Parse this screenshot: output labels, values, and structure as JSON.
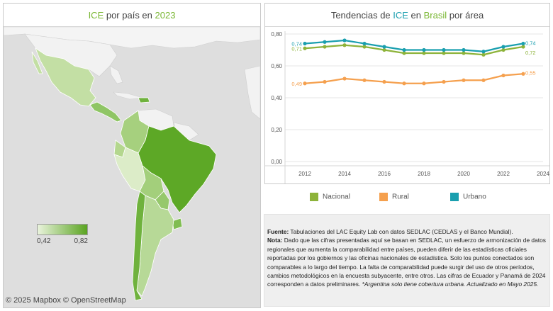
{
  "map": {
    "title_pre": "ICE",
    "title_mid": " por país en ",
    "title_year": "2023",
    "legend_min": "0,42",
    "legend_max": "0,82",
    "credit": "© 2025 Mapbox  © OpenStreetMap",
    "colors": {
      "low": "#e9f3dc",
      "high": "#5aa421",
      "land": "#f3f3f3",
      "sea": "#dedede"
    }
  },
  "chart": {
    "title_pre": "Tendencias de ",
    "title_ice": "ICE",
    "title_mid": " en ",
    "title_country": "Brasil",
    "title_post": " por área",
    "legend": {
      "nacional": "Nacional",
      "rural": "Rural",
      "urbano": "Urbano"
    }
  },
  "chart_data": {
    "type": "line",
    "title": "Tendencias de ICE en Brasil por área",
    "x": [
      2012,
      2013,
      2014,
      2015,
      2016,
      2017,
      2018,
      2019,
      2020,
      2021,
      2022,
      2023
    ],
    "xticks": [
      "2012",
      "2014",
      "2016",
      "2018",
      "2020",
      "2022",
      "2024"
    ],
    "xlim": [
      2011,
      2024
    ],
    "ylim": [
      0,
      0.8
    ],
    "yticks": [
      "0,00",
      "0,20",
      "0,40",
      "0,60",
      "0,80"
    ],
    "grid": true,
    "legend_position": "bottom",
    "series": [
      {
        "name": "Nacional",
        "color": "#8db33a",
        "values": [
          0.71,
          0.72,
          0.73,
          0.72,
          0.7,
          0.68,
          0.68,
          0.68,
          0.68,
          0.67,
          0.7,
          0.72
        ],
        "first_label": "0,71",
        "last_label": "0,72"
      },
      {
        "name": "Rural",
        "color": "#f5a04e",
        "values": [
          0.49,
          0.5,
          0.52,
          0.51,
          0.5,
          0.49,
          0.49,
          0.5,
          0.51,
          0.51,
          0.54,
          0.55
        ],
        "first_label": "0,49",
        "last_label": "0,55"
      },
      {
        "name": "Urbano",
        "color": "#1a9faf",
        "values": [
          0.74,
          0.75,
          0.76,
          0.74,
          0.72,
          0.7,
          0.7,
          0.7,
          0.7,
          0.69,
          0.72,
          0.74
        ],
        "first_label": "0,74",
        "last_label": "0,74"
      }
    ]
  },
  "note": {
    "fuente_label": "Fuente:",
    "fuente_text": " Tabulaciones del LAC Equity Lab con datos SEDLAC (CEDLAS y el Banco Mundial).",
    "nota_label": "Nota:",
    "nota_text": " Dado que las cifras presentadas aquí se basan en SEDLAC, un esfuerzo de armonización de datos regionales que aumenta la comparabilidad entre países, pueden diferir de las estadísticas oficiales reportadas por los gobiernos y las oficinas nacionales de estadística. Solo los puntos conectados son comparables a lo largo del tiempo. La falta de comparabilidad puede surgir del uso de otros períodos, cambios metodológicos en la encuesta subyacente, entre otros. Las cifras de Ecuador y Panamá de 2024 corresponden a datos preliminares. ",
    "nota_italic": "*Argentina solo tiene cobertura urbana. Actualizado en Mayo 2025."
  }
}
